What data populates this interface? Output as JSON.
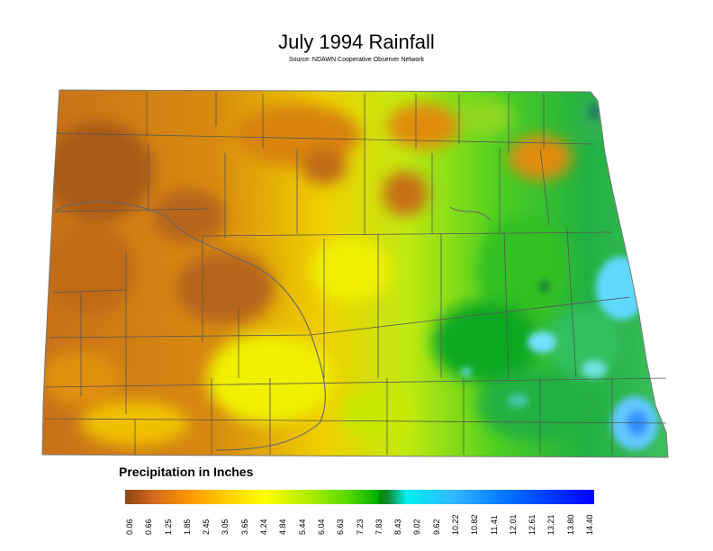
{
  "title": "July 1994 Rainfall",
  "subtitle": "Source: NDAWN Cooperative Observer Network",
  "legend": {
    "title": "Precipitation in Inches",
    "ticks": [
      "0.06",
      "0.66",
      "1.25",
      "1.85",
      "2.45",
      "3.05",
      "3.65",
      "4.24",
      "4.84",
      "5.44",
      "6.04",
      "6.63",
      "7.23",
      "7.83",
      "8.43",
      "9.02",
      "9.62",
      "10.22",
      "10.82",
      "11.41",
      "12.01",
      "12.61",
      "13.21",
      "13.80",
      "14.40"
    ],
    "colors": [
      "#8b4513",
      "#d2691e",
      "#ff8c00",
      "#ffb000",
      "#ffff00",
      "#c8f000",
      "#7fdc00",
      "#00c800",
      "#00a000",
      "#008c2a",
      "#00e8e8",
      "#60c8ff",
      "#0070ff",
      "#0000ff"
    ]
  },
  "colors": {
    "dry": "#c8701a",
    "mid": "#f0e000",
    "wet": "#30c020",
    "very_wet": "#60d8ff",
    "boundary": "#555555"
  }
}
